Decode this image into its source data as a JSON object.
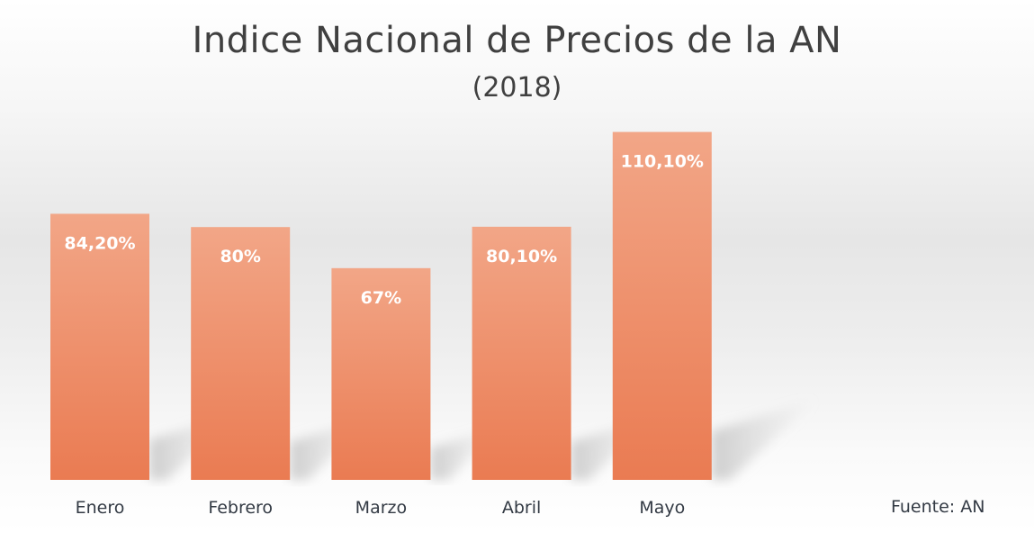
{
  "chart_data": {
    "type": "bar",
    "title": "Indice Nacional de Precios de la AN",
    "subtitle": "(2018)",
    "categories": [
      "Enero",
      "Febrero",
      "Marzo",
      "Abril",
      "Mayo"
    ],
    "values": [
      84.2,
      80,
      67,
      80.1,
      110.1
    ],
    "data_labels": [
      "84,20%",
      "80%",
      "67%",
      "80,10%",
      "110,10%"
    ],
    "xlabel": "",
    "ylabel": "",
    "ylim": [
      0,
      125
    ],
    "grid": false,
    "legend": "none",
    "source": "Fuente: AN",
    "colors": {
      "bar_top": "#f2a687",
      "bar_bottom": "#ea7b52",
      "label": "#ffffff",
      "text": "#404040"
    }
  }
}
